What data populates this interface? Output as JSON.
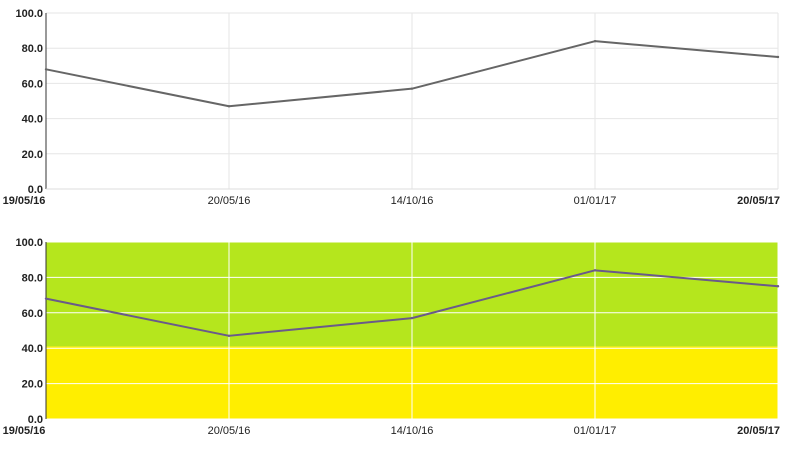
{
  "chart_data": [
    {
      "type": "line",
      "x": [
        "19/05/16",
        "20/05/16",
        "14/10/16",
        "01/01/17",
        "20/05/17"
      ],
      "x_ticks": [
        {
          "label": "19/05/16",
          "bold": true
        },
        {
          "label": "20/05/16",
          "bold": false
        },
        {
          "label": "14/10/16",
          "bold": false
        },
        {
          "label": "01/01/17",
          "bold": false
        },
        {
          "label": "20/05/17",
          "bold": true
        }
      ],
      "y_ticks": [
        "0.0",
        "20.0",
        "40.0",
        "60.0",
        "80.0",
        "100.0"
      ],
      "series": [
        {
          "values": [
            68,
            47,
            57,
            84,
            75
          ]
        }
      ],
      "ylim": [
        0,
        100
      ],
      "grid": true,
      "line_color": "#666666",
      "grid_color": "#e6e6e6",
      "background": "#ffffff"
    },
    {
      "type": "line",
      "x": [
        "19/05/16",
        "20/05/16",
        "14/10/16",
        "01/01/17",
        "20/05/17"
      ],
      "x_ticks": [
        {
          "label": "19/05/16",
          "bold": true
        },
        {
          "label": "20/05/16",
          "bold": false
        },
        {
          "label": "14/10/16",
          "bold": false
        },
        {
          "label": "01/01/17",
          "bold": false
        },
        {
          "label": "20/05/17",
          "bold": true
        }
      ],
      "y_ticks": [
        "0.0",
        "20.0",
        "40.0",
        "60.0",
        "80.0",
        "100.0"
      ],
      "series": [
        {
          "values": [
            68,
            47,
            57,
            84,
            75
          ]
        }
      ],
      "ylim": [
        0,
        100
      ],
      "grid": true,
      "line_color": "#6a5a8a",
      "grid_color": "#ffffff",
      "bands": [
        {
          "from": 0,
          "to": 41,
          "color": "#ffee00"
        },
        {
          "from": 41,
          "to": 100,
          "color": "#b5e61d"
        }
      ]
    }
  ]
}
